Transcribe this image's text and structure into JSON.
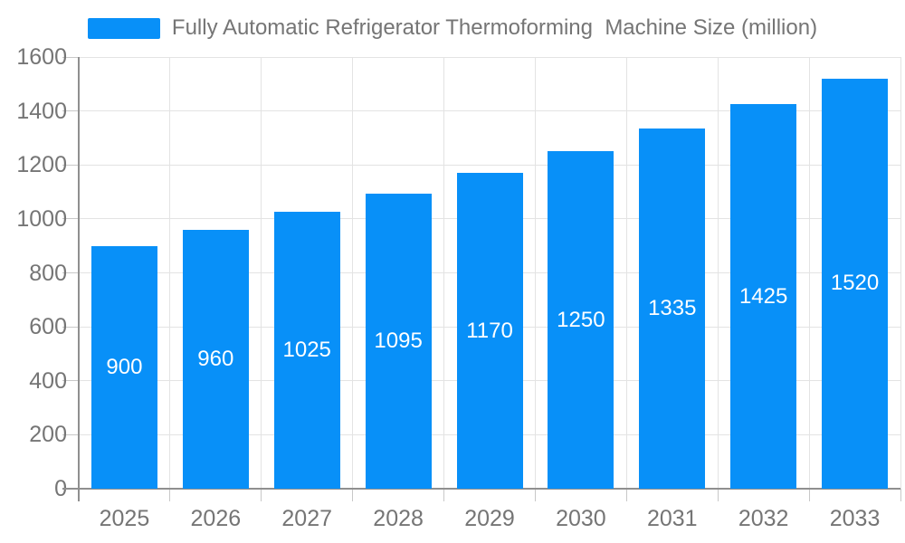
{
  "chart_data": {
    "type": "bar",
    "title": "Fully Automatic Refrigerator Thermoforming  Machine Size (million)",
    "legend_label": "Fully Automatic Refrigerator Thermoforming  Machine Size (million)",
    "legend_position": "top-center",
    "categories": [
      "2025",
      "2026",
      "2027",
      "2028",
      "2029",
      "2030",
      "2031",
      "2032",
      "2033"
    ],
    "values": [
      900,
      960,
      1025,
      1095,
      1170,
      1250,
      1335,
      1425,
      1520
    ],
    "xlabel": "",
    "ylabel": "",
    "ylim": [
      0,
      1600
    ],
    "y_ticks": [
      0,
      200,
      400,
      600,
      800,
      1000,
      1200,
      1400,
      1600
    ],
    "grid": true,
    "colors": {
      "bar": "#0890F8",
      "bar_value_text": "#FFFFFF",
      "axis_line": "#8F8F8F",
      "grid_line": "#E3E3E3",
      "tick_mark": "#C8C8C8",
      "tick_label": "#757575",
      "legend_text": "#757575",
      "background": "#FFFFFF"
    }
  }
}
